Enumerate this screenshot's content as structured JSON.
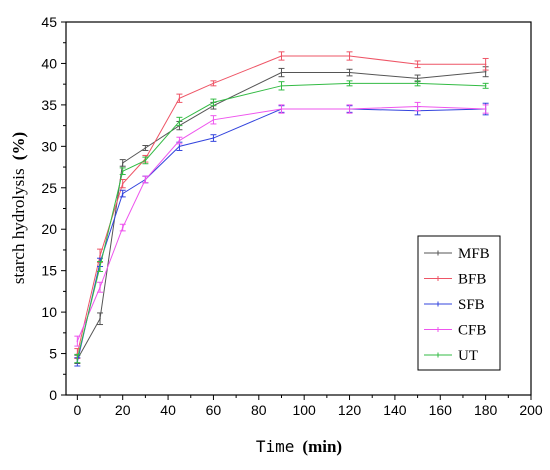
{
  "chart_data": {
    "type": "line",
    "xlabel": {
      "main": "Time",
      "unit": "(min)"
    },
    "ylabel": {
      "main": "starch hydrolysis",
      "unit": "(%)"
    },
    "xlim": [
      -5,
      200
    ],
    "ylim": [
      0,
      45
    ],
    "xticks": [
      "0",
      "20",
      "40",
      "60",
      "80",
      "100",
      "120",
      "140",
      "160",
      "180",
      "200"
    ],
    "yticks": [
      "0",
      "5",
      "10",
      "15",
      "20",
      "25",
      "30",
      "35",
      "40",
      "45"
    ],
    "x": [
      0,
      10,
      20,
      30,
      45,
      60,
      90,
      120,
      150,
      180
    ],
    "legend_position": "lower-right",
    "series": [
      {
        "name": "MFB",
        "color": "#555555",
        "values": [
          4.3,
          9.2,
          28.0,
          29.8,
          32.5,
          34.9,
          38.9,
          38.9,
          38.2,
          39.0
        ],
        "errors": [
          0.5,
          0.7,
          0.4,
          0.3,
          0.5,
          0.4,
          0.5,
          0.4,
          0.4,
          0.6
        ]
      },
      {
        "name": "BFB",
        "color": "#ee5566",
        "values": [
          5.0,
          16.8,
          25.5,
          28.5,
          35.8,
          37.6,
          40.9,
          40.9,
          39.9,
          39.9
        ],
        "errors": [
          0.6,
          0.8,
          0.5,
          0.4,
          0.5,
          0.3,
          0.5,
          0.5,
          0.4,
          0.7
        ]
      },
      {
        "name": "SFB",
        "color": "#3344dd",
        "values": [
          4.0,
          16.0,
          24.3,
          26.0,
          30.0,
          31.0,
          34.5,
          34.5,
          34.3,
          34.5
        ],
        "errors": [
          0.5,
          0.5,
          0.4,
          0.4,
          0.5,
          0.4,
          0.4,
          0.4,
          0.5,
          0.7
        ]
      },
      {
        "name": "CFB",
        "color": "#ee55ee",
        "values": [
          6.5,
          13.0,
          20.2,
          26.0,
          30.7,
          33.2,
          34.5,
          34.5,
          34.8,
          34.5
        ],
        "errors": [
          0.6,
          0.6,
          0.4,
          0.4,
          0.4,
          0.5,
          0.5,
          0.5,
          0.5,
          0.5
        ]
      },
      {
        "name": "UT",
        "color": "#33bb44",
        "values": [
          4.4,
          15.5,
          27.0,
          28.3,
          33.0,
          35.3,
          37.3,
          37.6,
          37.6,
          37.3
        ],
        "errors": [
          0.5,
          0.6,
          0.4,
          0.4,
          0.5,
          0.4,
          0.5,
          0.3,
          0.3,
          0.3
        ]
      }
    ]
  }
}
